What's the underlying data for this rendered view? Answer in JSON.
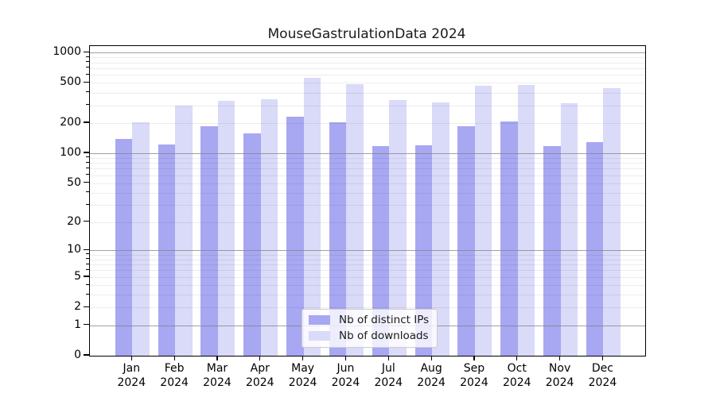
{
  "chart_data": {
    "type": "bar",
    "title": "MouseGastrulationData 2024",
    "categories": [
      "Jan",
      "Feb",
      "Mar",
      "Apr",
      "May",
      "Jun",
      "Jul",
      "Aug",
      "Sep",
      "Oct",
      "Nov",
      "Dec"
    ],
    "x_tick_second_line": "2024",
    "series": [
      {
        "name": "Nb of distinct IPs",
        "color": "#a7a7f2",
        "values": [
          140,
          123,
          185,
          158,
          230,
          205,
          117,
          121,
          186,
          206,
          117,
          129
        ]
      },
      {
        "name": "Nb of downloads",
        "color": "#dadaf9",
        "values": [
          205,
          300,
          330,
          345,
          560,
          490,
          337,
          321,
          470,
          475,
          317,
          445
        ]
      }
    ],
    "yscale": "log1p",
    "ylim": [
      0,
      1160
    ],
    "y_ticks": [
      1000,
      500,
      200,
      100,
      50,
      20,
      10,
      5,
      2,
      1,
      0
    ],
    "grid_major_values": [
      1,
      10,
      100,
      1000
    ],
    "grid_minor_values": [
      2,
      3,
      4,
      5,
      6,
      7,
      8,
      9,
      20,
      30,
      40,
      50,
      60,
      70,
      80,
      90,
      200,
      300,
      400,
      500,
      600,
      700,
      800,
      900
    ],
    "legend_position": "lower center",
    "colors": {
      "axis": "#000000",
      "text": "#1a1a1a",
      "grid_major": "#828282",
      "grid_minor": "#e8e8e8",
      "background": "#ffffff"
    }
  }
}
